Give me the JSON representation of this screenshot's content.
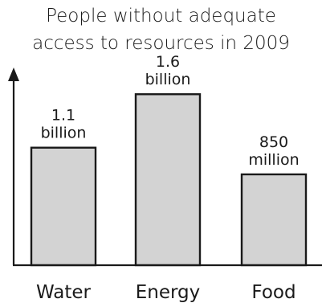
{
  "chart_data": {
    "type": "bar",
    "title_lines": [
      "People without adequate",
      "access to resources in 2009"
    ],
    "categories": [
      "Water",
      "Energy",
      "Food"
    ],
    "values": [
      1.1,
      1.6,
      0.85
    ],
    "unit": "billion",
    "value_labels": [
      [
        "1.1",
        "billion"
      ],
      [
        "1.6",
        "billion"
      ],
      [
        "850",
        "million"
      ]
    ],
    "ylim": [
      0,
      1.85
    ],
    "grid": false,
    "bar_color": "#d3d3d3",
    "edge_color": "#1a1a1a"
  }
}
